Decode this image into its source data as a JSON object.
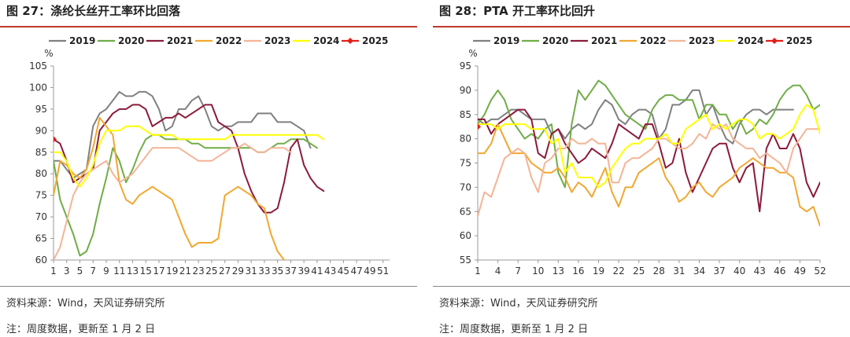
{
  "chart_data": [
    {
      "type": "line",
      "title": "图 27：涤纶长丝开工率环比回落",
      "source": "资料来源：Wind，天风证券研究所",
      "note": "注：周度数据，更新至 1 月 2 日",
      "ylabel": "%",
      "ylim": [
        60,
        105
      ],
      "yticks": [
        60,
        65,
        70,
        75,
        80,
        85,
        90,
        95,
        100,
        105
      ],
      "xlim": [
        1,
        52
      ],
      "xticks": [
        1,
        3,
        5,
        7,
        9,
        11,
        13,
        15,
        17,
        19,
        21,
        23,
        25,
        27,
        29,
        31,
        33,
        35,
        37,
        39,
        41,
        43,
        45,
        47,
        49,
        51
      ],
      "legend_position": "top",
      "series": [
        {
          "name": "2019",
          "color": "#808080",
          "values": [
            83,
            83,
            81,
            79,
            80,
            81,
            91,
            94,
            95,
            97,
            99,
            98,
            98,
            99,
            99,
            98,
            95,
            90,
            91,
            95,
            95,
            97,
            98,
            95,
            91,
            90,
            91,
            91,
            92,
            92,
            92,
            94,
            94,
            94,
            92,
            92,
            92,
            91,
            90,
            86
          ]
        },
        {
          "name": "2020",
          "color": "#70ad47",
          "values": [
            83,
            74,
            70,
            66,
            61,
            62,
            66,
            73,
            79,
            86,
            83,
            78,
            81,
            85,
            88,
            89,
            89,
            88,
            88,
            88,
            88,
            87,
            87,
            86,
            86,
            86,
            86,
            86,
            86,
            86,
            86,
            85,
            85,
            86,
            87,
            87,
            88,
            88,
            88,
            87,
            86
          ]
        },
        {
          "name": "2021",
          "color": "#8b1a3a",
          "values": [
            88,
            87,
            83,
            78,
            79,
            80,
            81,
            90,
            92,
            94,
            95,
            95,
            96,
            96,
            95,
            91,
            92,
            93,
            93,
            94,
            93,
            94,
            95,
            96,
            96,
            92,
            91,
            90,
            86,
            80,
            76,
            73,
            71,
            71,
            72,
            78,
            86,
            88,
            82,
            79,
            77,
            76
          ]
        },
        {
          "name": "2022",
          "color": "#f0a830",
          "values": [
            75,
            83,
            82,
            80,
            79,
            81,
            86,
            93,
            91,
            89,
            78,
            74,
            73,
            75,
            76,
            77,
            76,
            75,
            74,
            70,
            66,
            63,
            64,
            64,
            64,
            65,
            75,
            76,
            77,
            76,
            75,
            73,
            72,
            66,
            62,
            60,
            59
          ]
        },
        {
          "name": "2023",
          "color": "#f4b496",
          "values": [
            60,
            63,
            69,
            75,
            78,
            80,
            81,
            82,
            83,
            80,
            78,
            79,
            80,
            82,
            84,
            86,
            86,
            86,
            86,
            86,
            85,
            84,
            83,
            83,
            83,
            84,
            85,
            86,
            86,
            87,
            86,
            85,
            85,
            86,
            86,
            86,
            85
          ]
        },
        {
          "name": "2024",
          "color": "#ffff00",
          "values": [
            85,
            85,
            83,
            79,
            77,
            79,
            82,
            87,
            90,
            90,
            90,
            91,
            91,
            91,
            90,
            89,
            89,
            89,
            89,
            88,
            88,
            88,
            88,
            88,
            88,
            88,
            88,
            89,
            89,
            89,
            89,
            89,
            89,
            89,
            89,
            89,
            89,
            89,
            89,
            89,
            89,
            88
          ]
        },
        {
          "name": "2025",
          "color": "#e0201b",
          "values": [
            88
          ]
        }
      ]
    },
    {
      "type": "line",
      "title": "图 28：PTA 开工率环比回升",
      "source": "资料来源：Wind，天风证券研究所",
      "note": "注：周度数据，更新至 1 月 2 日",
      "ylabel": "%",
      "ylim": [
        55,
        95
      ],
      "yticks": [
        55,
        60,
        65,
        70,
        75,
        80,
        85,
        90,
        95
      ],
      "xlim": [
        1,
        52
      ],
      "xticks": [
        1,
        4,
        7,
        10,
        13,
        16,
        19,
        22,
        25,
        28,
        31,
        34,
        37,
        40,
        43,
        46,
        49,
        52
      ],
      "legend_position": "top",
      "series": [
        {
          "name": "2019",
          "color": "#808080",
          "values": [
            84,
            83,
            84,
            84,
            85,
            86,
            86,
            85,
            84,
            84,
            84,
            81,
            82,
            80,
            82,
            83,
            82,
            83,
            86,
            88,
            87,
            84,
            83,
            85,
            86,
            86,
            85,
            80,
            82,
            87,
            87,
            88,
            90,
            90,
            85,
            87,
            83,
            80,
            79,
            83,
            85,
            86,
            86,
            85,
            86,
            86,
            86,
            86
          ]
        },
        {
          "name": "2020",
          "color": "#70ad47",
          "values": [
            83,
            85,
            88,
            90,
            88,
            84,
            82,
            80,
            81,
            80,
            82,
            83,
            73,
            70,
            83,
            90,
            88,
            90,
            92,
            91,
            89,
            87,
            85,
            84,
            83,
            82,
            86,
            88,
            89,
            89,
            88,
            88,
            88,
            84,
            87,
            87,
            85,
            85,
            82,
            84,
            81,
            82,
            84,
            83,
            85,
            88,
            90,
            91,
            91,
            89,
            86,
            87
          ]
        },
        {
          "name": "2021",
          "color": "#8b1a3a",
          "values": [
            84,
            84,
            81,
            83,
            84,
            85,
            86,
            86,
            84,
            77,
            76,
            81,
            82,
            79,
            77,
            75,
            76,
            78,
            77,
            76,
            79,
            83,
            82,
            81,
            80,
            83,
            83,
            79,
            74,
            75,
            80,
            73,
            69,
            72,
            75,
            78,
            79,
            79,
            74,
            71,
            74,
            75,
            65,
            78,
            81,
            78,
            78,
            81,
            78,
            71,
            68,
            71
          ]
        },
        {
          "name": "2022",
          "color": "#f0a830",
          "values": [
            77,
            77,
            79,
            83,
            80,
            77,
            77,
            77,
            75,
            74,
            73,
            73,
            74,
            72,
            69,
            71,
            70,
            68,
            71,
            74,
            69,
            66,
            70,
            70,
            73,
            74,
            75,
            76,
            72,
            70,
            67,
            68,
            70,
            71,
            69,
            68,
            70,
            71,
            72,
            74,
            75,
            76,
            75,
            74,
            74,
            73,
            73,
            72,
            66,
            65,
            66,
            62
          ]
        },
        {
          "name": "2023",
          "color": "#f4b496",
          "values": [
            64,
            69,
            68,
            72,
            76,
            77,
            78,
            77,
            72,
            69,
            75,
            76,
            78,
            78,
            80,
            79,
            79,
            80,
            79,
            79,
            71,
            71,
            75,
            76,
            76,
            77,
            78,
            80,
            80,
            79,
            78,
            78,
            79,
            81,
            80,
            83,
            82,
            83,
            80,
            79,
            78,
            78,
            76,
            77,
            76,
            75,
            73,
            78,
            80,
            82,
            82,
            82
          ]
        },
        {
          "name": "2024",
          "color": "#ffff00",
          "values": [
            83,
            83,
            83,
            82,
            83,
            83,
            83,
            83,
            82,
            82,
            82,
            79,
            80,
            73,
            75,
            72,
            72,
            72,
            70,
            71,
            74,
            76,
            78,
            79,
            79,
            80,
            80,
            80,
            81,
            79,
            79,
            82,
            83,
            84,
            85,
            82,
            83,
            82,
            83,
            84,
            84,
            83,
            80,
            81,
            81,
            80,
            81,
            82,
            85,
            87,
            86,
            81
          ]
        },
        {
          "name": "2025",
          "color": "#e0201b",
          "values": [
            82.5
          ]
        }
      ]
    }
  ]
}
